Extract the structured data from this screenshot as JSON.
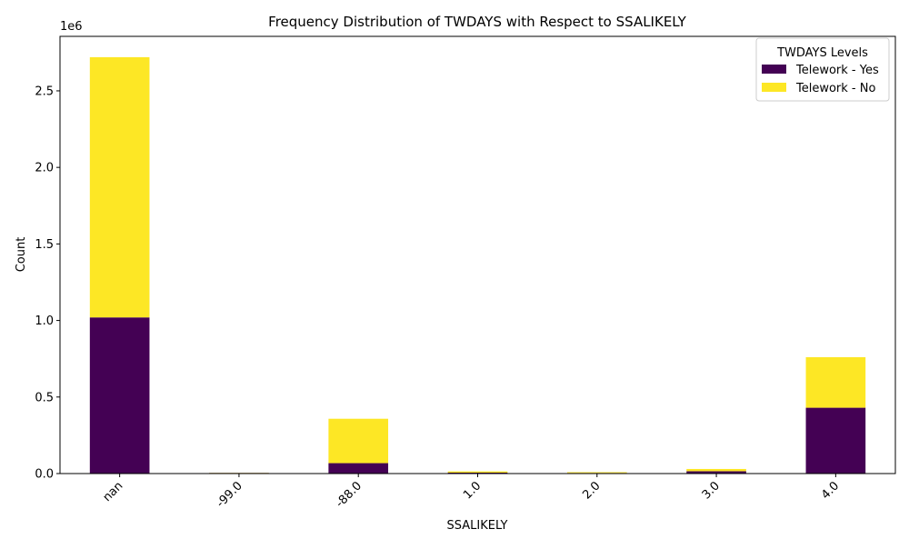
{
  "chart_data": {
    "type": "bar",
    "stacked": true,
    "title": "Frequency Distribution of TWDAYS with Respect to SSALIKELY",
    "xlabel": "SSALIKELY",
    "ylabel": "Count",
    "y_scale_label": "1e6",
    "categories": [
      "nan",
      "-99.0",
      "-88.0",
      "1.0",
      "2.0",
      "3.0",
      "4.0"
    ],
    "series": [
      {
        "name": "Telework - Yes",
        "color": "#440154",
        "values": [
          1020000,
          4000,
          68000,
          6000,
          4000,
          15000,
          430000
        ]
      },
      {
        "name": "Telework - No",
        "color": "#fde725",
        "values": [
          1700000,
          1000,
          290000,
          8000,
          5000,
          15000,
          330000
        ]
      }
    ],
    "y_ticks": [
      0,
      500000,
      1000000,
      1500000,
      2000000,
      2500000
    ],
    "y_tick_labels": [
      "0.0",
      "0.5",
      "1.0",
      "1.5",
      "2.0",
      "2.5"
    ],
    "ylim": [
      0,
      2856000
    ],
    "legend": {
      "title": "TWDAYS Levels",
      "position": "top-right"
    },
    "grid": false
  }
}
